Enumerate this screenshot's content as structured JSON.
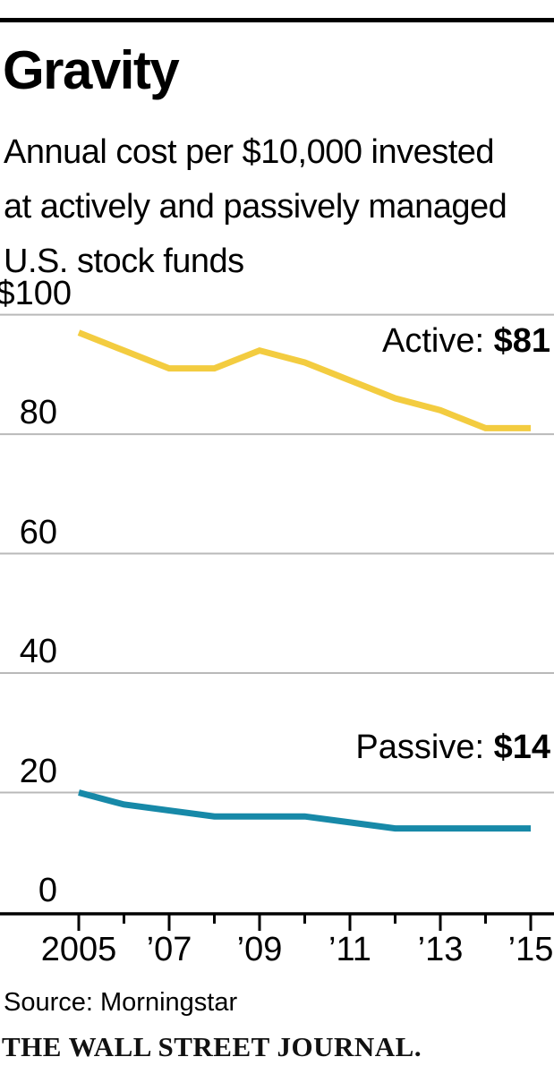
{
  "header": {
    "title": "Gravity",
    "subtitle_lines": [
      "Annual cost per $10,000 invested",
      "at actively and passively managed",
      "U.S. stock funds"
    ]
  },
  "chart_data": {
    "type": "line",
    "x": [
      2005,
      2006,
      2007,
      2008,
      2009,
      2010,
      2011,
      2012,
      2013,
      2014,
      2015
    ],
    "series": [
      {
        "name": "Active",
        "color": "#f3cc40",
        "values": [
          97,
          94,
          91,
          91,
          94,
          92,
          89,
          86,
          84,
          81,
          81
        ],
        "end_label": "Active:",
        "end_value": "$81"
      },
      {
        "name": "Passive",
        "color": "#1789a8",
        "values": [
          20,
          18,
          17,
          16,
          16,
          16,
          15,
          14,
          14,
          14,
          14
        ],
        "end_label": "Passive:",
        "end_value": "$14"
      }
    ],
    "ylim": [
      0,
      100
    ],
    "yticks": [
      {
        "value": 100,
        "label": "$100"
      },
      {
        "value": 80,
        "label": "80"
      },
      {
        "value": 60,
        "label": "60"
      },
      {
        "value": 40,
        "label": "40"
      },
      {
        "value": 20,
        "label": "20"
      },
      {
        "value": 0,
        "label": "0"
      }
    ],
    "xticks": [
      {
        "year": 2005,
        "label": "2005"
      },
      {
        "year": 2007,
        "label": "’07"
      },
      {
        "year": 2009,
        "label": "’09"
      },
      {
        "year": 2011,
        "label": "’11"
      },
      {
        "year": 2013,
        "label": "’13"
      },
      {
        "year": 2015,
        "label": "’15"
      }
    ],
    "grid": "horizontal",
    "grid_color": "#b9b9b9",
    "axis_color": "#000000",
    "legend_position": "end-of-line-labels"
  },
  "footer": {
    "source": "Source: Morningstar",
    "brand": "THE WALL STREET JOURNAL."
  }
}
